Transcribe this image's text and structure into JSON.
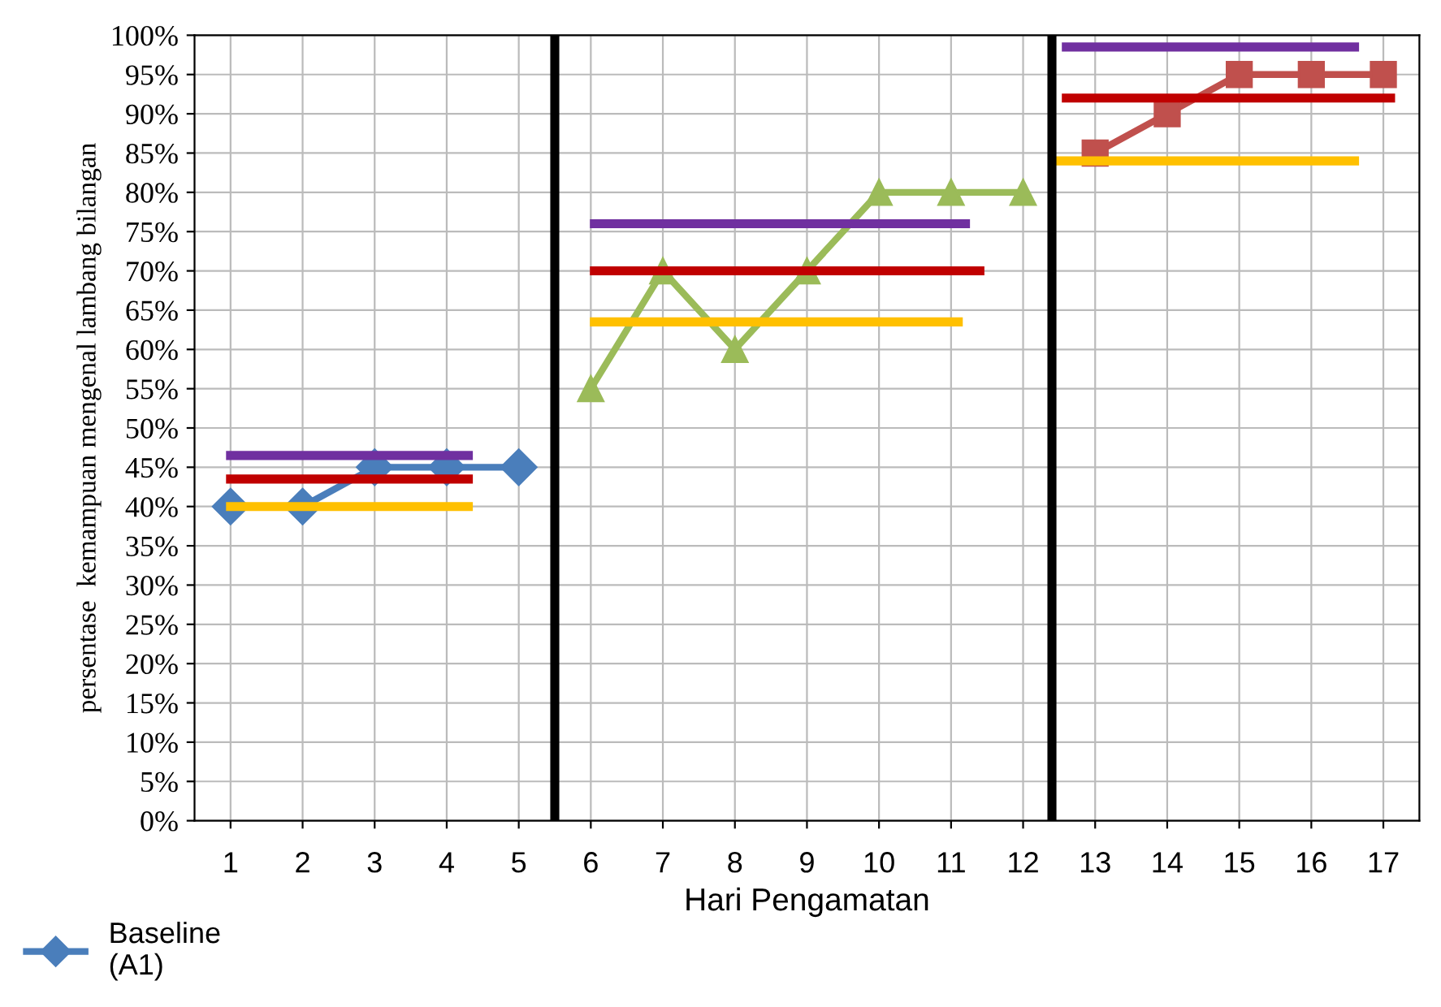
{
  "chart_data": {
    "type": "line",
    "xlabel": "Hari Pengamatan",
    "ylabel": "persentase  kemampuan mengenal lambang bilangan",
    "xlim": [
      0.5,
      17.5
    ],
    "xticks": [
      1,
      2,
      3,
      4,
      5,
      6,
      7,
      8,
      9,
      10,
      11,
      12,
      13,
      14,
      15,
      16,
      17
    ],
    "ylim": [
      0,
      100
    ],
    "yticks": [
      {
        "value": 0,
        "label": "0%"
      },
      {
        "value": 5,
        "label": "5%"
      },
      {
        "value": 10,
        "label": "10%"
      },
      {
        "value": 15,
        "label": "15%"
      },
      {
        "value": 20,
        "label": "20%"
      },
      {
        "value": 25,
        "label": "25%"
      },
      {
        "value": 30,
        "label": "30%"
      },
      {
        "value": 35,
        "label": "35%"
      },
      {
        "value": 40,
        "label": "40%"
      },
      {
        "value": 45,
        "label": "45%"
      },
      {
        "value": 50,
        "label": "50%"
      },
      {
        "value": 55,
        "label": "55%"
      },
      {
        "value": 60,
        "label": "60%"
      },
      {
        "value": 65,
        "label": "65%"
      },
      {
        "value": 70,
        "label": "70%"
      },
      {
        "value": 75,
        "label": "75%"
      },
      {
        "value": 80,
        "label": "80%"
      },
      {
        "value": 85,
        "label": "85%"
      },
      {
        "value": 90,
        "label": "90%"
      },
      {
        "value": 95,
        "label": "95%"
      },
      {
        "value": 100,
        "label": "100%"
      }
    ],
    "grid": true,
    "legend": "bottom left",
    "series": [
      {
        "name": "Baseline\n(A1)",
        "color": "#4a7ebb",
        "marker": "diamond",
        "x": [
          1,
          2,
          3,
          4,
          5
        ],
        "values": [
          40,
          40,
          45,
          45,
          45
        ]
      },
      {
        "color": "#9bbb59",
        "marker": "triangle",
        "x": [
          6,
          7,
          8,
          9,
          10,
          11,
          12
        ],
        "values": [
          55,
          70,
          60,
          70,
          80,
          80,
          80
        ]
      },
      {
        "color": "#c0504d",
        "marker": "square",
        "x": [
          13,
          14,
          15,
          16,
          17
        ],
        "values": [
          85,
          90,
          95,
          95,
          95
        ]
      },
      {
        "color": "#7030a0",
        "marker": "none",
        "x": [
          1,
          4.3
        ],
        "values": [
          46.5,
          46.5
        ]
      },
      {
        "color": "#c00000",
        "marker": "none",
        "x": [
          1,
          4.3
        ],
        "values": [
          43.5,
          43.5
        ]
      },
      {
        "color": "#ffc000",
        "marker": "none",
        "x": [
          1,
          4.3
        ],
        "values": [
          40,
          40
        ]
      },
      {
        "color": "#7030a0",
        "marker": "none",
        "x": [
          6.05,
          11.2
        ],
        "values": [
          76,
          76
        ]
      },
      {
        "color": "#c00000",
        "marker": "none",
        "x": [
          6.05,
          11.4
        ],
        "values": [
          70,
          70
        ]
      },
      {
        "color": "#ffc000",
        "marker": "none",
        "x": [
          6.05,
          11.1
        ],
        "values": [
          63.5,
          63.5
        ]
      },
      {
        "color": "#7030a0",
        "marker": "none",
        "x": [
          12.6,
          16.6
        ],
        "values": [
          98.5,
          98.5
        ]
      },
      {
        "color": "#c00000",
        "marker": "none",
        "x": [
          12.6,
          17.1
        ],
        "values": [
          92,
          92
        ]
      },
      {
        "color": "#ffc000",
        "marker": "none",
        "x": [
          12.5,
          16.6
        ],
        "values": [
          84,
          84
        ]
      }
    ],
    "ref_lines": [
      {
        "axis": "x",
        "value": 5.5,
        "color": "#000000"
      },
      {
        "axis": "x",
        "value": 12.4,
        "color": "#000000"
      }
    ]
  }
}
